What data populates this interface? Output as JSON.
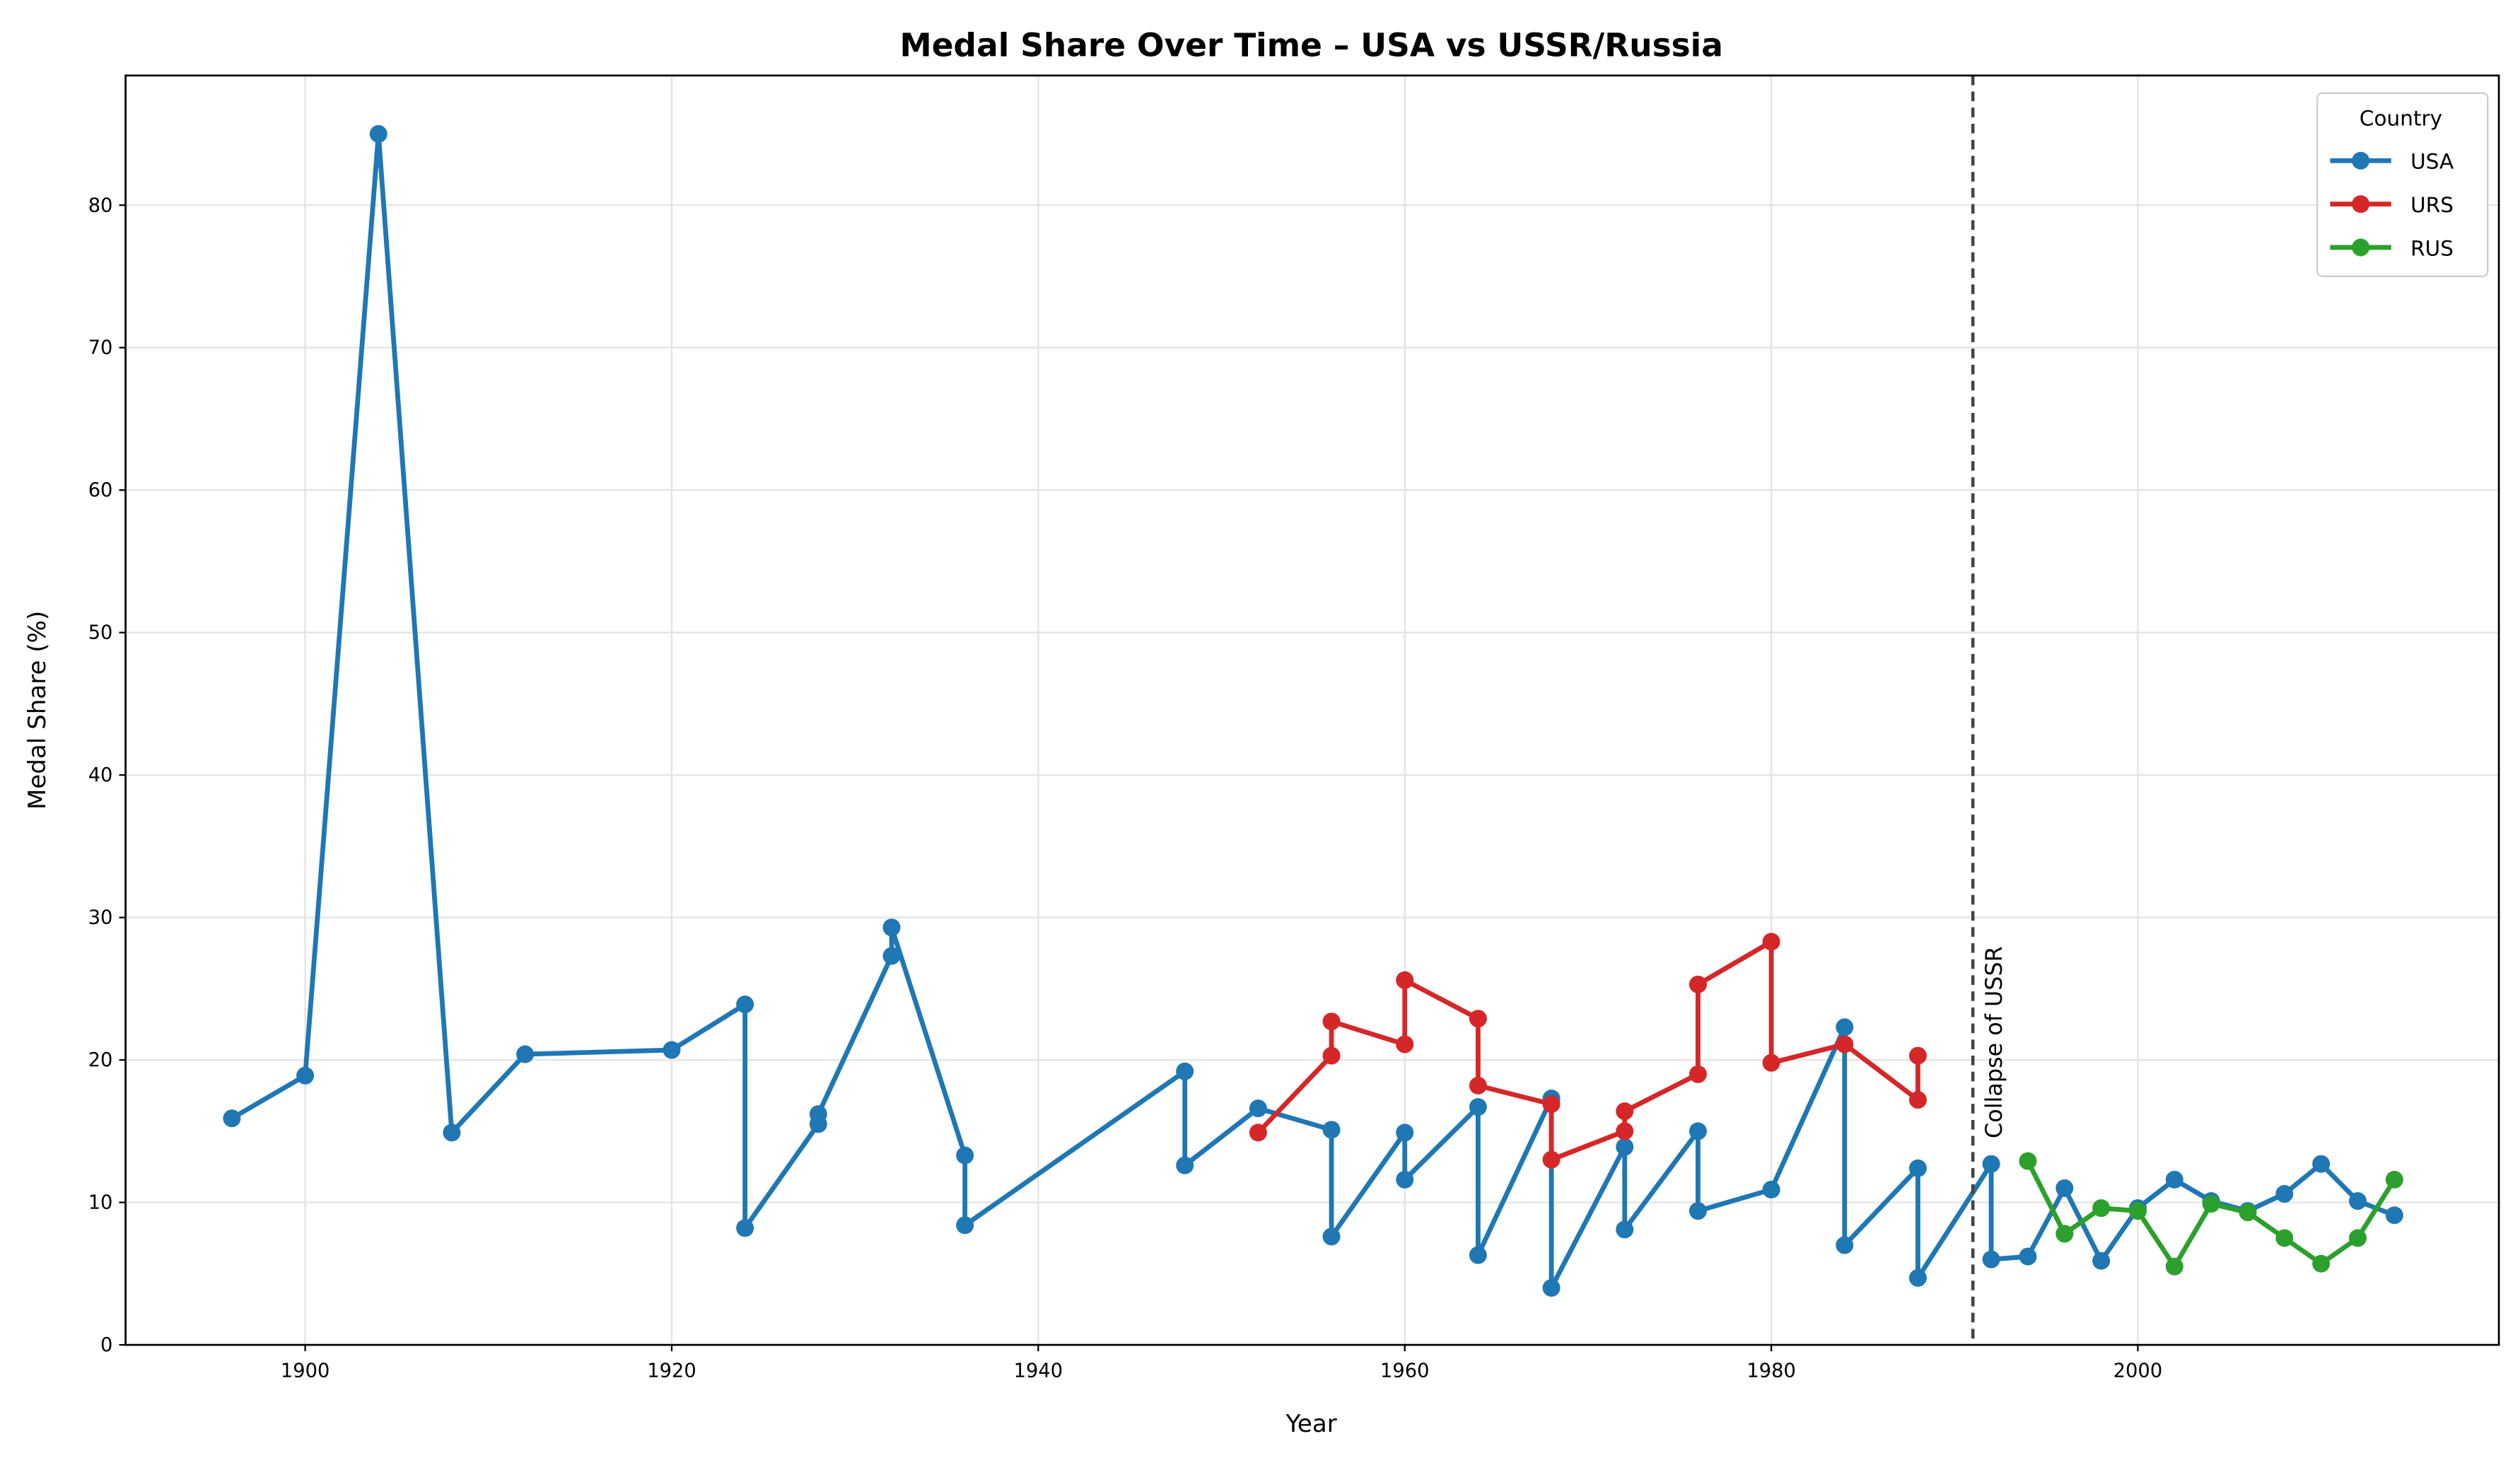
{
  "chart_data": {
    "type": "line",
    "title": "Medal Share Over Time – USA vs USSR/Russia",
    "xlabel": "Year",
    "ylabel": "Medal Share (%)",
    "xlim": [
      1890.2,
      2019.7
    ],
    "ylim": [
      0,
      89.1
    ],
    "xticks": [
      1900,
      1920,
      1940,
      1960,
      1980,
      2000
    ],
    "yticks": [
      0,
      10,
      20,
      30,
      40,
      50,
      60,
      70,
      80
    ],
    "grid": true,
    "legend_title": "Country",
    "legend_position": "upper right",
    "annotation": {
      "text": "Collapse of USSR",
      "x": 1991
    },
    "series": [
      {
        "name": "USA",
        "color": "#1f77b4",
        "x": [
          1896,
          1900,
          1904,
          1908,
          1912,
          1920,
          1924,
          1924,
          1928,
          1928,
          1932,
          1932,
          1936,
          1936,
          1948,
          1948,
          1952,
          1956,
          1956,
          1960,
          1960,
          1964,
          1964,
          1968,
          1968,
          1972,
          1972,
          1976,
          1976,
          1980,
          1984,
          1984,
          1988,
          1988,
          1992,
          1992,
          1994,
          1996,
          1998,
          2000,
          2002,
          2004,
          2006,
          2008,
          2010,
          2012,
          2014
        ],
        "values": [
          15.9,
          18.9,
          85.0,
          14.9,
          20.4,
          20.7,
          23.9,
          8.2,
          15.5,
          16.2,
          27.3,
          29.3,
          13.3,
          8.4,
          19.2,
          12.6,
          16.6,
          15.1,
          7.6,
          14.9,
          11.6,
          16.7,
          6.3,
          17.3,
          4.0,
          13.9,
          8.1,
          15.0,
          9.4,
          10.9,
          22.3,
          7.0,
          12.4,
          4.7,
          12.7,
          6.0,
          6.2,
          11.0,
          5.9,
          9.6,
          11.6,
          10.1,
          9.4,
          10.6,
          12.7,
          10.1,
          9.1
        ]
      },
      {
        "name": "URS",
        "color": "#d62728",
        "x": [
          1952,
          1956,
          1956,
          1960,
          1960,
          1964,
          1964,
          1968,
          1968,
          1972,
          1972,
          1976,
          1976,
          1980,
          1980,
          1984,
          1988,
          1988
        ],
        "values": [
          14.9,
          20.3,
          22.7,
          21.1,
          25.6,
          22.9,
          18.2,
          16.9,
          13.0,
          15.0,
          16.4,
          19.0,
          25.3,
          28.3,
          19.8,
          21.1,
          17.2,
          20.3
        ]
      },
      {
        "name": "RUS",
        "color": "#2ca02c",
        "x": [
          1994,
          1996,
          1998,
          2000,
          2002,
          2004,
          2006,
          2008,
          2010,
          2012,
          2014
        ],
        "values": [
          12.9,
          7.8,
          9.6,
          9.4,
          5.5,
          9.9,
          9.3,
          7.5,
          5.7,
          7.5,
          11.6
        ]
      }
    ]
  }
}
